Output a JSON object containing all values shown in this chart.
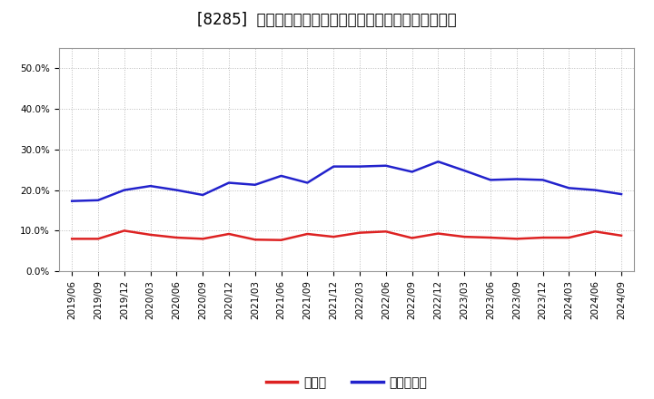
{
  "title": "[8285]  現頲金、有利子負債の総資産に対する比率の推移",
  "x_labels": [
    "2019/06",
    "2019/09",
    "2019/12",
    "2020/03",
    "2020/06",
    "2020/09",
    "2020/12",
    "2021/03",
    "2021/06",
    "2021/09",
    "2021/12",
    "2022/03",
    "2022/06",
    "2022/09",
    "2022/12",
    "2023/03",
    "2023/06",
    "2023/09",
    "2023/12",
    "2024/03",
    "2024/06",
    "2024/09"
  ],
  "cash": [
    0.08,
    0.08,
    0.1,
    0.09,
    0.083,
    0.08,
    0.092,
    0.078,
    0.077,
    0.092,
    0.085,
    0.095,
    0.098,
    0.082,
    0.093,
    0.085,
    0.083,
    0.08,
    0.083,
    0.083,
    0.098,
    0.088
  ],
  "debt": [
    0.173,
    0.175,
    0.2,
    0.21,
    0.2,
    0.188,
    0.218,
    0.213,
    0.235,
    0.218,
    0.258,
    0.258,
    0.26,
    0.245,
    0.27,
    0.248,
    0.225,
    0.227,
    0.225,
    0.205,
    0.2,
    0.19
  ],
  "cash_color": "#dd2222",
  "debt_color": "#2222cc",
  "background_color": "#ffffff",
  "plot_bg_color": "#ffffff",
  "grid_color": "#bbbbbb",
  "ylim": [
    0.0,
    0.55
  ],
  "yticks": [
    0.0,
    0.1,
    0.2,
    0.3,
    0.4,
    0.5
  ],
  "legend_cash": "現頲金",
  "legend_debt": "有利子負債",
  "line_width": 1.8,
  "title_fontsize": 12,
  "legend_fontsize": 10,
  "tick_fontsize": 7.5
}
